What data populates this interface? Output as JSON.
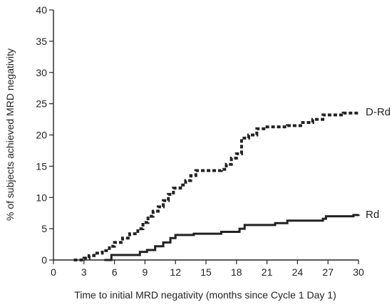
{
  "chart_data": {
    "type": "line",
    "title": "",
    "xlabel": "Time to initial MRD negativity (months since Cycle 1 Day 1)",
    "ylabel": "% of subjects achieved MRD negativity",
    "xlim": [
      0,
      30
    ],
    "ylim": [
      0,
      40
    ],
    "xticks": [
      0,
      3,
      6,
      9,
      12,
      15,
      18,
      21,
      24,
      27,
      30
    ],
    "yticks": [
      0,
      5,
      10,
      15,
      20,
      25,
      30,
      35,
      40
    ],
    "grid": false,
    "legend": "inline-labels-right",
    "series": [
      {
        "name": "D-Rd",
        "line_style": "dashed",
        "color": "#222222",
        "points": [
          [
            2.0,
            0.0
          ],
          [
            3.0,
            0.3
          ],
          [
            3.5,
            0.7
          ],
          [
            4.0,
            1.1
          ],
          [
            4.8,
            1.5
          ],
          [
            5.5,
            2.2
          ],
          [
            6.0,
            2.8
          ],
          [
            6.8,
            3.5
          ],
          [
            7.5,
            4.2
          ],
          [
            8.3,
            5.0
          ],
          [
            8.8,
            6.0
          ],
          [
            9.3,
            7.0
          ],
          [
            9.8,
            7.8
          ],
          [
            10.3,
            8.5
          ],
          [
            10.8,
            9.5
          ],
          [
            11.3,
            10.5
          ],
          [
            11.8,
            11.5
          ],
          [
            12.5,
            12.0
          ],
          [
            13.0,
            12.7
          ],
          [
            13.5,
            13.5
          ],
          [
            14.0,
            14.3
          ],
          [
            16.5,
            14.5
          ],
          [
            17.0,
            15.3
          ],
          [
            17.5,
            16.3
          ],
          [
            18.0,
            17.0
          ],
          [
            18.5,
            19.5
          ],
          [
            19.2,
            20.0
          ],
          [
            20.0,
            21.0
          ],
          [
            21.0,
            21.3
          ],
          [
            23.0,
            21.5
          ],
          [
            24.5,
            22.0
          ],
          [
            25.5,
            22.5
          ],
          [
            26.5,
            23.2
          ],
          [
            28.5,
            23.5
          ],
          [
            30.0,
            23.7
          ]
        ]
      },
      {
        "name": "Rd",
        "line_style": "solid",
        "color": "#222222",
        "points": [
          [
            5.0,
            0.0
          ],
          [
            5.7,
            0.8
          ],
          [
            8.5,
            1.3
          ],
          [
            9.2,
            1.6
          ],
          [
            10.0,
            2.2
          ],
          [
            10.8,
            2.8
          ],
          [
            11.5,
            3.5
          ],
          [
            12.0,
            4.0
          ],
          [
            13.8,
            4.2
          ],
          [
            16.5,
            4.5
          ],
          [
            18.3,
            5.0
          ],
          [
            18.8,
            5.6
          ],
          [
            21.8,
            5.9
          ],
          [
            23.0,
            6.3
          ],
          [
            26.5,
            6.6
          ],
          [
            26.8,
            7.0
          ],
          [
            29.5,
            7.2
          ],
          [
            30.0,
            7.3
          ]
        ]
      }
    ]
  }
}
